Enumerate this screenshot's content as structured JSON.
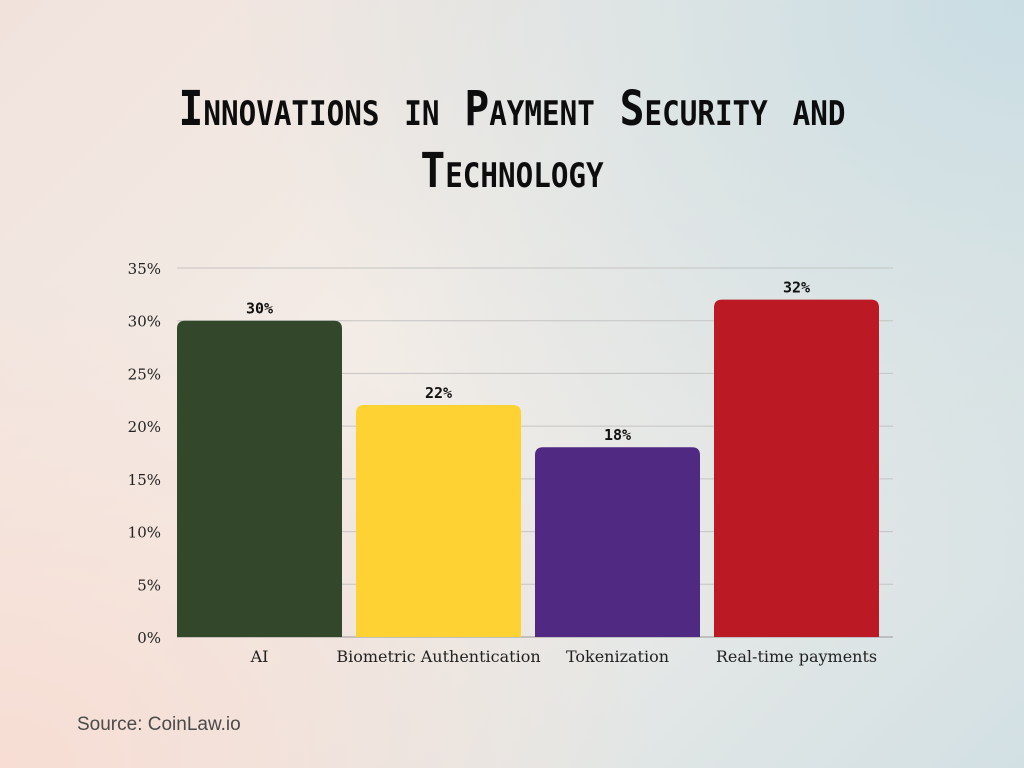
{
  "title": "Innovations in Payment Security and Technology",
  "source": "Source: CoinLaw.io",
  "chart_data": {
    "type": "bar",
    "title": "Innovations in Payment Security and Technology",
    "xlabel": "",
    "ylabel": "",
    "categories": [
      "AI",
      "Biometric Authentication",
      "Tokenization",
      "Real-time payments"
    ],
    "values": [
      30,
      22,
      18,
      32
    ],
    "value_labels": [
      "30%",
      "22%",
      "18%",
      "32%"
    ],
    "colors": [
      "#33472a",
      "#fed233",
      "#4f2982",
      "#bb1a25"
    ],
    "ylim": [
      0,
      35
    ],
    "yticks": [
      0,
      5,
      10,
      15,
      20,
      25,
      30,
      35
    ],
    "ytick_labels": [
      "0%",
      "5%",
      "10%",
      "15%",
      "20%",
      "25%",
      "30%",
      "35%"
    ],
    "grid": true,
    "legend": "none"
  }
}
